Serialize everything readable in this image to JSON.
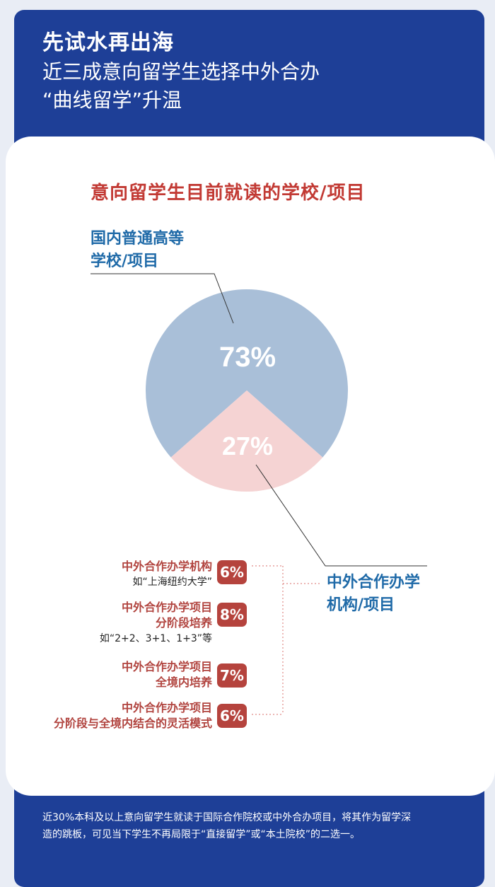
{
  "header": {
    "title": "先试水再出海",
    "subtitle_line1": "近三成意向留学生选择中外合办",
    "subtitle_line2": "“曲线留学”升温"
  },
  "chart_data": {
    "type": "pie",
    "title": "意向留学生目前就读的学校/项目",
    "categories": [
      "国内普通高等学校/项目",
      "中外合作办学机构/项目"
    ],
    "values": [
      73,
      27
    ],
    "value_labels": [
      "73%",
      "27%"
    ],
    "colors": [
      "#a9bfd8",
      "#f5d3d3"
    ],
    "breakdown": {
      "parent": "中外合作办学机构/项目",
      "items": [
        {
          "label": "中外合作办学机构",
          "note": "如“上海纽约大学”",
          "value": 6,
          "value_label": "6%"
        },
        {
          "label": "中外合作办学项目 分阶段培养",
          "note": "如“2+2、3+1、1+3”等",
          "value": 8,
          "value_label": "8%"
        },
        {
          "label": "中外合作办学项目 全境内培养",
          "note": "",
          "value": 7,
          "value_label": "7%"
        },
        {
          "label": "中外合作办学项目 分阶段与全境内结合的灵活模式",
          "note": "",
          "value": 6,
          "value_label": "6%"
        }
      ]
    }
  },
  "labels": {
    "domestic_line1": "国内普通高等",
    "domestic_line2": "学校/项目",
    "sino_line1": "中外合作办学",
    "sino_line2": "机构/项目"
  },
  "sub": {
    "r1_line1": "中外合作办学机构",
    "r1_note": "如“上海纽约大学”",
    "r2_line1": "中外合作办学项目",
    "r2_line2": "分阶段培养",
    "r2_note": "如“2+2、3+1、1+3”等",
    "r3_line1": "中外合作办学项目",
    "r3_line2": "全境内培养",
    "r4_line1": "中外合作办学项目",
    "r4_line2": "分阶段与全境内结合的灵活模式"
  },
  "footer": {
    "line1": "近30%本科及以上意向留学生就读于国际合作院校或中外合办项目，将其作为留学深",
    "line2": "造的跳板，可见当下学生不再局限于“直接留学”或“本土院校”的二选一。"
  }
}
